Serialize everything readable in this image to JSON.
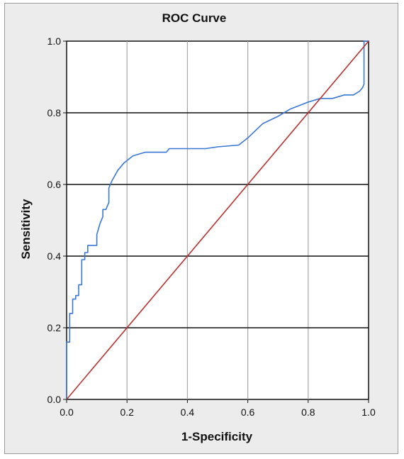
{
  "chart_data": {
    "type": "line",
    "title": "ROC Curve",
    "xlabel": "1-Specificity",
    "ylabel": "Sensitivity",
    "xlim": [
      0,
      1
    ],
    "ylim": [
      0,
      1
    ],
    "x_ticks": [
      "0.0",
      "0.2",
      "0.4",
      "0.6",
      "0.8",
      "1.0"
    ],
    "y_ticks": [
      "0.0",
      "0.2",
      "0.4",
      "0.6",
      "0.8",
      "1.0"
    ],
    "grid": true,
    "series": [
      {
        "color": "#3a78d6",
        "points": [
          [
            0.0,
            0.0
          ],
          [
            0.0,
            0.16
          ],
          [
            0.01,
            0.16
          ],
          [
            0.01,
            0.24
          ],
          [
            0.02,
            0.24
          ],
          [
            0.02,
            0.28
          ],
          [
            0.03,
            0.28
          ],
          [
            0.03,
            0.29
          ],
          [
            0.04,
            0.29
          ],
          [
            0.04,
            0.32
          ],
          [
            0.05,
            0.32
          ],
          [
            0.05,
            0.39
          ],
          [
            0.06,
            0.39
          ],
          [
            0.06,
            0.41
          ],
          [
            0.07,
            0.41
          ],
          [
            0.07,
            0.43
          ],
          [
            0.1,
            0.43
          ],
          [
            0.1,
            0.46
          ],
          [
            0.11,
            0.49
          ],
          [
            0.12,
            0.51
          ],
          [
            0.12,
            0.53
          ],
          [
            0.13,
            0.53
          ],
          [
            0.14,
            0.55
          ],
          [
            0.14,
            0.59
          ],
          [
            0.15,
            0.61
          ],
          [
            0.17,
            0.64
          ],
          [
            0.19,
            0.66
          ],
          [
            0.22,
            0.68
          ],
          [
            0.26,
            0.69
          ],
          [
            0.33,
            0.69
          ],
          [
            0.34,
            0.7
          ],
          [
            0.46,
            0.7
          ],
          [
            0.5,
            0.705
          ],
          [
            0.57,
            0.71
          ],
          [
            0.6,
            0.73
          ],
          [
            0.65,
            0.77
          ],
          [
            0.7,
            0.79
          ],
          [
            0.74,
            0.81
          ],
          [
            0.8,
            0.83
          ],
          [
            0.84,
            0.84
          ],
          [
            0.88,
            0.84
          ],
          [
            0.92,
            0.85
          ],
          [
            0.95,
            0.85
          ],
          [
            0.97,
            0.86
          ],
          [
            0.98,
            0.87
          ],
          [
            0.985,
            0.88
          ],
          [
            0.985,
            1.0
          ],
          [
            1.0,
            1.0
          ]
        ]
      },
      {
        "color": "#b83232",
        "points": [
          [
            0,
            0
          ],
          [
            1,
            1
          ]
        ]
      }
    ]
  }
}
